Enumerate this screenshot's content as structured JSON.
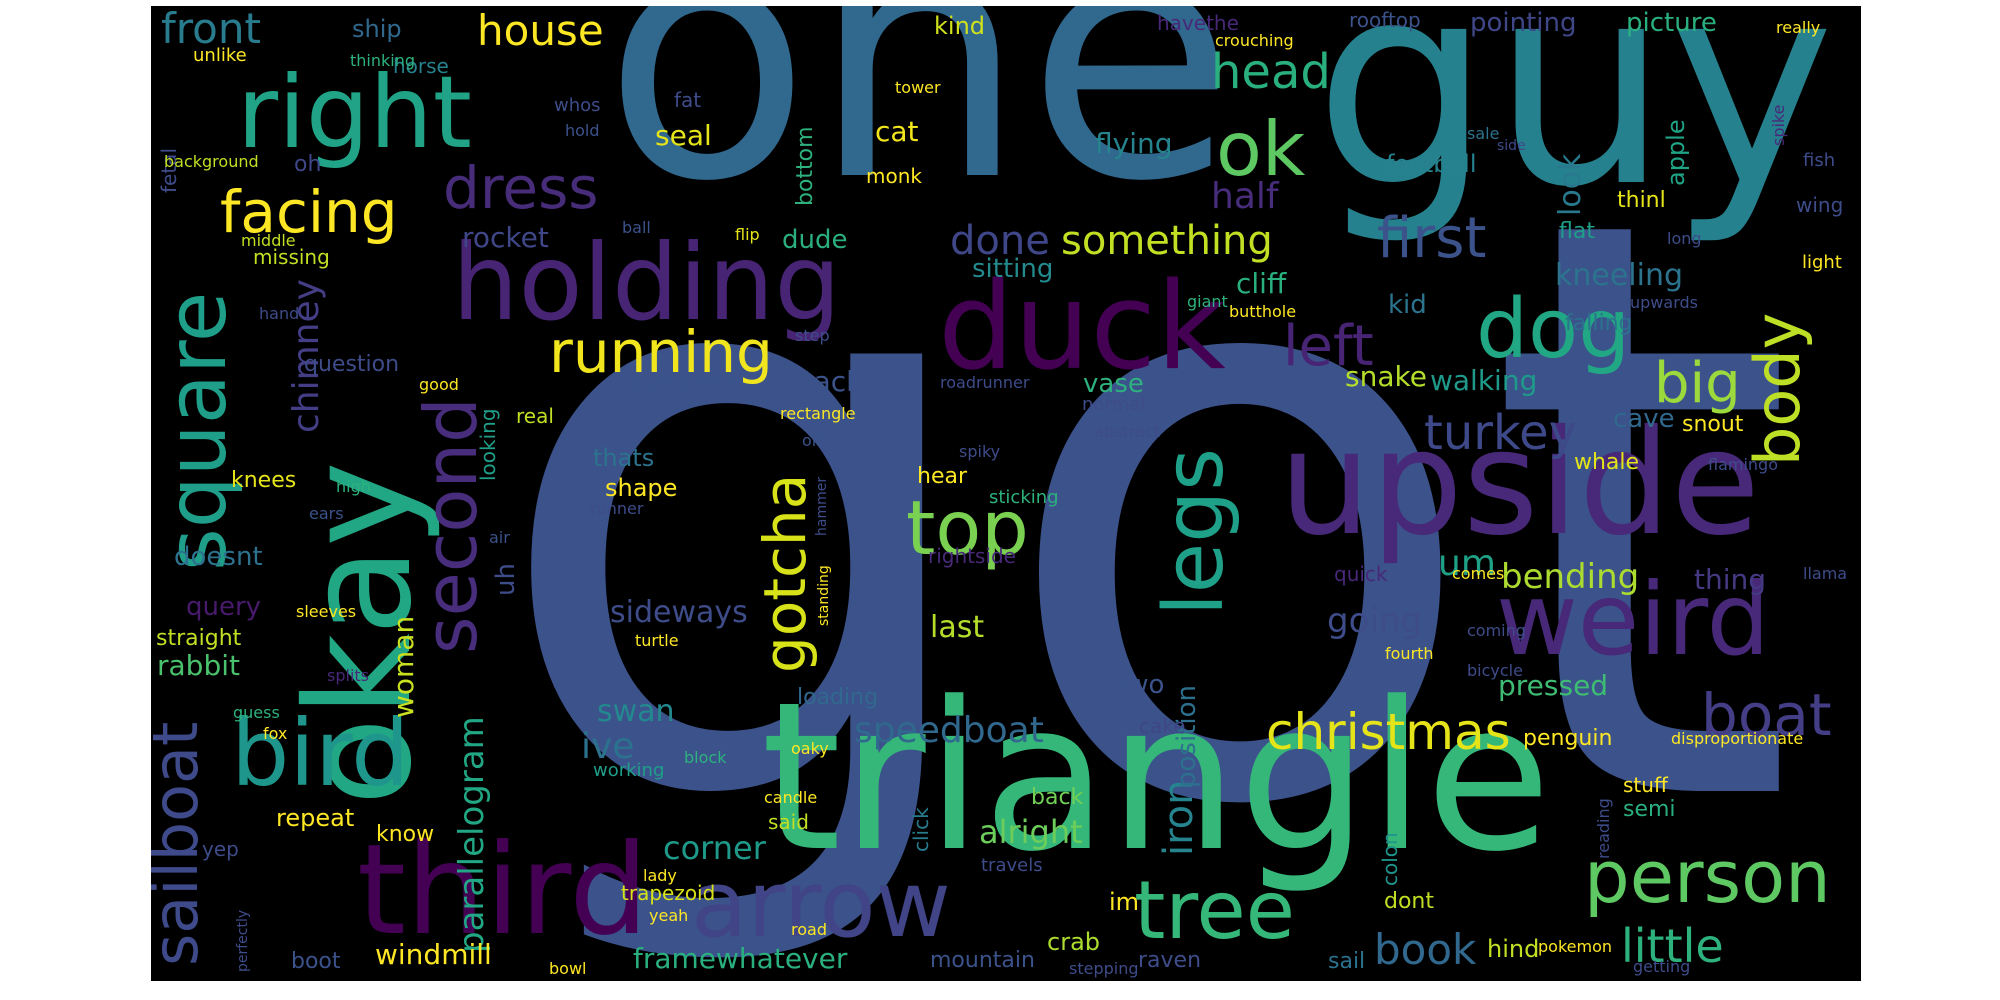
{
  "colors": {
    "background": "#000000",
    "page": "#ffffff"
  },
  "words": {
    "w01": {
      "text": "got",
      "color": "#3b528b"
    },
    "w02": {
      "text": "one",
      "color": "#30688e"
    },
    "w03": {
      "text": "guy",
      "color": "#26818e"
    },
    "w04": {
      "text": "triangle",
      "color": "#35b779"
    },
    "w05": {
      "text": "okay",
      "color": "#22a785"
    },
    "w06": {
      "text": "upside",
      "color": "#482878"
    },
    "w07": {
      "text": "duck",
      "color": "#440154"
    },
    "w08": {
      "text": "third",
      "color": "#440154"
    },
    "w09": {
      "text": "holding",
      "color": "#482475"
    },
    "w10": {
      "text": "weird",
      "color": "#482878"
    },
    "w11": {
      "text": "right",
      "color": "#20a386"
    },
    "w12": {
      "text": "bird",
      "color": "#1f968b"
    },
    "w13": {
      "text": "arrow",
      "color": "#414487"
    },
    "w14": {
      "text": "person",
      "color": "#5ec962"
    },
    "w15": {
      "text": "tree",
      "color": "#35b779"
    },
    "w16": {
      "text": "legs",
      "color": "#1fa088"
    },
    "w17": {
      "text": "dog",
      "color": "#22a785"
    },
    "w18": {
      "text": "square",
      "color": "#1f9e89"
    },
    "w19": {
      "text": "second",
      "color": "#472d7b"
    },
    "w20": {
      "text": "top",
      "color": "#7ad151"
    },
    "w21": {
      "text": "ok",
      "color": "#5ec962"
    },
    "w22": {
      "text": "sailboat",
      "color": "#3e4a89"
    },
    "w23": {
      "text": "body",
      "color": "#bddf26"
    },
    "w24": {
      "text": "facing",
      "color": "#fde725"
    },
    "w25": {
      "text": "dress",
      "color": "#472c7a"
    },
    "w26": {
      "text": "running",
      "color": "#f1e51d"
    },
    "w27": {
      "text": "boat",
      "color": "#433e85"
    },
    "w28": {
      "text": "first",
      "color": "#3b528b"
    },
    "w29": {
      "text": "left",
      "color": "#482475"
    },
    "w30": {
      "text": "big",
      "color": "#9bd93c"
    },
    "w31": {
      "text": "christmas",
      "color": "#e5e419"
    },
    "w32": {
      "text": "gotcha",
      "color": "#d8e219"
    },
    "w33": {
      "text": "turkey",
      "color": "#3e4989"
    },
    "w34": {
      "text": "head",
      "color": "#2ab07f"
    },
    "w35": {
      "text": "book",
      "color": "#31688e"
    },
    "w36": {
      "text": "little",
      "color": "#2db27d"
    },
    "w37": {
      "text": "house",
      "color": "#fde725"
    },
    "w38": {
      "text": "front",
      "color": "#287c8e"
    },
    "w39": {
      "text": "something",
      "color": "#c2df23"
    },
    "w40": {
      "text": "done",
      "color": "#3f4788"
    },
    "w41": {
      "text": "chimney",
      "color": "#433e85"
    },
    "w42": {
      "text": "half",
      "color": "#472d7b"
    },
    "w43": {
      "text": "iron",
      "color": "#25848e"
    },
    "w44": {
      "text": "parallelogram",
      "color": "#22a785"
    },
    "w45": {
      "text": "um",
      "color": "#1fa187"
    },
    "w46": {
      "text": "speedboat",
      "color": "#31688e"
    },
    "w47": {
      "text": "bending",
      "color": "#addc30"
    },
    "w48": {
      "text": "going",
      "color": "#3e4c8a"
    },
    "w49": {
      "text": "ive",
      "color": "#2c728e"
    },
    "w50": {
      "text": "look",
      "color": "#29798e"
    },
    "w51": {
      "text": "kneeling",
      "color": "#2c738e"
    },
    "w52": {
      "text": "position",
      "color": "#2d708e"
    },
    "w53": {
      "text": "woman",
      "color": "#c8e020"
    },
    "w54": {
      "text": "windmill",
      "color": "#fde725"
    },
    "w55": {
      "text": "framewhatever",
      "color": "#2ab07f"
    },
    "w56": {
      "text": "corner",
      "color": "#1f9a8a"
    },
    "w57": {
      "text": "alright",
      "color": "#6ccd5a"
    },
    "w58": {
      "text": "swan",
      "color": "#23898e"
    },
    "w59": {
      "text": "sideways",
      "color": "#3e4c8a"
    },
    "w60": {
      "text": "last",
      "color": "#b5de2b"
    },
    "w61": {
      "text": "yacht",
      "color": "#3b528b"
    },
    "w62": {
      "text": "rocket",
      "color": "#3f4788"
    },
    "w63": {
      "text": "cliff",
      "color": "#2ab07f"
    },
    "w64": {
      "text": "snake",
      "color": "#b5de2b"
    },
    "w65": {
      "text": "walking",
      "color": "#1f9a8a"
    },
    "w66": {
      "text": "cave",
      "color": "#31688e"
    },
    "w67": {
      "text": "pressed",
      "color": "#3fbc73"
    },
    "w68": {
      "text": "thing",
      "color": "#443a83"
    },
    "w69": {
      "text": "rabbit",
      "color": "#4ac16d"
    },
    "w70": {
      "text": "query",
      "color": "#481a6c"
    },
    "w71": {
      "text": "doesnt",
      "color": "#2c728e"
    },
    "w72": {
      "text": "uh",
      "color": "#3e4c8a"
    },
    "w73": {
      "text": "seal",
      "color": "#e5e419"
    },
    "w74": {
      "text": "cat",
      "color": "#f1e51d"
    },
    "w75": {
      "text": "flying",
      "color": "#25848e"
    },
    "w76": {
      "text": "dude",
      "color": "#2ab07f"
    },
    "w77": {
      "text": "sitting",
      "color": "#238a8d"
    },
    "w78": {
      "text": "kid",
      "color": "#2c738e"
    },
    "w79": {
      "text": "vase",
      "color": "#2db27d"
    },
    "w80": {
      "text": "bottom",
      "color": "#2db27d"
    },
    "w81": {
      "text": "ship",
      "color": "#31688e"
    },
    "w82": {
      "text": "kind",
      "color": "#d0e11c"
    },
    "w83": {
      "text": "pointing",
      "color": "#3f4788"
    },
    "w84": {
      "text": "picture",
      "color": "#2ab07f"
    },
    "w85": {
      "text": "football",
      "color": "#26828e"
    },
    "w86": {
      "text": "apple",
      "color": "#20a486"
    },
    "w87": {
      "text": "thinl",
      "color": "#e5e419"
    },
    "w88": {
      "text": "flat",
      "color": "#1f9e89"
    },
    "w89": {
      "text": "falling",
      "color": "#2c728e"
    },
    "w90": {
      "text": "whale",
      "color": "#e5e419"
    },
    "w91": {
      "text": "snout",
      "color": "#fde725"
    },
    "w92": {
      "text": "penguin",
      "color": "#fde725"
    },
    "w93": {
      "text": "semi",
      "color": "#29af7f"
    },
    "w94": {
      "text": "stuff",
      "color": "#fde725"
    },
    "w95": {
      "text": "hind",
      "color": "#c2df23"
    },
    "w96": {
      "text": "dont",
      "color": "#c2df23"
    },
    "w97": {
      "text": "colon",
      "color": "#1f958b"
    },
    "w98": {
      "text": "back",
      "color": "#73d056"
    },
    "w99": {
      "text": "crab",
      "color": "#addc30"
    },
    "w100": {
      "text": "im",
      "color": "#fde725"
    },
    "w101": {
      "text": "raven",
      "color": "#3e4c8a"
    },
    "w102": {
      "text": "sail",
      "color": "#2c728e"
    },
    "w103": {
      "text": "mountain",
      "color": "#3b528b"
    },
    "w104": {
      "text": "boot",
      "color": "#3b528b"
    },
    "w105": {
      "text": "trapezoid",
      "color": "#d8e219"
    },
    "w106": {
      "text": "repeat",
      "color": "#fde725"
    },
    "w107": {
      "text": "know",
      "color": "#fde725"
    },
    "w108": {
      "text": "yep",
      "color": "#3e4c8a"
    },
    "w109": {
      "text": "said",
      "color": "#c2df23"
    },
    "w110": {
      "text": "click",
      "color": "#287c8e"
    },
    "w111": {
      "text": "shape",
      "color": "#fde725"
    },
    "w112": {
      "text": "thats",
      "color": "#2c738e"
    },
    "w113": {
      "text": "knees",
      "color": "#e5e419"
    },
    "w114": {
      "text": "straight",
      "color": "#c2df23"
    },
    "w115": {
      "text": "loading",
      "color": "#31688e"
    },
    "w116": {
      "text": "working",
      "color": "#1f9e89"
    },
    "w117": {
      "text": "hear",
      "color": "#fde725"
    },
    "w118": {
      "text": "two",
      "color": "#3b528b"
    },
    "w119": {
      "text": "cake",
      "color": "#3f4788"
    },
    "w120": {
      "text": "question",
      "color": "#3e4c8a"
    },
    "w121": {
      "text": "real",
      "color": "#c2df23"
    },
    "w122": {
      "text": "steamboat",
      "color": "#3b528b"
    },
    "w123": {
      "text": "looking",
      "color": "#1f9e89"
    },
    "w124": {
      "text": "missing",
      "color": "#c2df23"
    },
    "w125": {
      "text": "oh",
      "color": "#3f4788"
    },
    "w126": {
      "text": "fetal",
      "color": "#3e4c8a"
    },
    "w127": {
      "text": "unlike",
      "color": "#fde725"
    },
    "w128": {
      "text": "horse",
      "color": "#26828e"
    },
    "w129": {
      "text": "thinking",
      "color": "#2db27d"
    },
    "w130": {
      "text": "background",
      "color": "#c2df23"
    },
    "w131": {
      "text": "middle",
      "color": "#c2df23"
    },
    "w132": {
      "text": "ball",
      "color": "#3b528b"
    },
    "w133": {
      "text": "flip",
      "color": "#e5e419"
    },
    "w134": {
      "text": "monk",
      "color": "#fde725"
    },
    "w135": {
      "text": "tower",
      "color": "#fde725"
    },
    "w136": {
      "text": "fat",
      "color": "#3e4c8a"
    },
    "w137": {
      "text": "whos",
      "color": "#3e4c8a"
    },
    "w138": {
      "text": "hold",
      "color": "#3b528b"
    },
    "w139": {
      "text": "havethe",
      "color": "#482878"
    },
    "w140": {
      "text": "crouching",
      "color": "#fde725"
    },
    "w141": {
      "text": "rooftop",
      "color": "#3b528b"
    },
    "w142": {
      "text": "really",
      "color": "#fde725"
    },
    "w143": {
      "text": "sale",
      "color": "#2c728e"
    },
    "w144": {
      "text": "spike",
      "color": "#482878"
    },
    "w145": {
      "text": "fish",
      "color": "#3e4c8a"
    },
    "w146": {
      "text": "wing",
      "color": "#3e4c8a"
    },
    "w147": {
      "text": "long",
      "color": "#3e4c8a"
    },
    "w148": {
      "text": "light",
      "color": "#fde725"
    },
    "w149": {
      "text": "upwards",
      "color": "#3e4c8a"
    },
    "w150": {
      "text": "giant",
      "color": "#2db27d"
    },
    "w151": {
      "text": "butthole",
      "color": "#fde725"
    },
    "w152": {
      "text": "step",
      "color": "#3e4c8a"
    },
    "w153": {
      "text": "good",
      "color": "#fde725"
    },
    "w154": {
      "text": "roadrunner",
      "color": "#3e4c8a"
    },
    "w155": {
      "text": "normal",
      "color": "#3e4c8a"
    },
    "w156": {
      "text": "abstract",
      "color": "#3e4c8a"
    },
    "w157": {
      "text": "rectangle",
      "color": "#fde725"
    },
    "w158": {
      "text": "oik",
      "color": "#3b528b"
    },
    "w159": {
      "text": "spiky",
      "color": "#3e4c8a"
    },
    "w160": {
      "text": "sticking",
      "color": "#2db27d"
    },
    "w161": {
      "text": "hammer",
      "color": "#3e4c8a"
    },
    "w162": {
      "text": "runner",
      "color": "#3e4c8a"
    },
    "w163": {
      "text": "air",
      "color": "#3b528b"
    },
    "w164": {
      "text": "standing",
      "color": "#fde725"
    },
    "w165": {
      "text": "rightside",
      "color": "#482878"
    },
    "w166": {
      "text": "turtle",
      "color": "#fde725"
    },
    "w167": {
      "text": "splits",
      "color": "#482878"
    },
    "w168": {
      "text": "sleeves",
      "color": "#fde725"
    },
    "w169": {
      "text": "ears",
      "color": "#3b528b"
    },
    "w170": {
      "text": "high",
      "color": "#2db27d"
    },
    "w171": {
      "text": "guess",
      "color": "#2db27d"
    },
    "w172": {
      "text": "fox",
      "color": "#fde725"
    },
    "w173": {
      "text": "block",
      "color": "#2db27d"
    },
    "w174": {
      "text": "oaky",
      "color": "#fde725"
    },
    "w175": {
      "text": "candle",
      "color": "#fde725"
    },
    "w176": {
      "text": "lady",
      "color": "#fde725"
    },
    "w177": {
      "text": "yeah",
      "color": "#fde725"
    },
    "w178": {
      "text": "road",
      "color": "#fde725"
    },
    "w179": {
      "text": "bowl",
      "color": "#fde725"
    },
    "w180": {
      "text": "perfectly",
      "color": "#3e4c8a"
    },
    "w181": {
      "text": "travels",
      "color": "#3e4c8a"
    },
    "w182": {
      "text": "stepping",
      "color": "#3e4c8a"
    },
    "w183": {
      "text": "pokemon",
      "color": "#fde725"
    },
    "w184": {
      "text": "getting",
      "color": "#3e4c8a"
    },
    "w185": {
      "text": "reading",
      "color": "#3e4c8a"
    },
    "w186": {
      "text": "quick",
      "color": "#482878"
    },
    "w187": {
      "text": "comes",
      "color": "#fde725"
    },
    "w188": {
      "text": "coming",
      "color": "#3e4c8a"
    },
    "w189": {
      "text": "fourth",
      "color": "#fde725"
    },
    "w190": {
      "text": "bicycle",
      "color": "#3e4c8a"
    },
    "w191": {
      "text": "llama",
      "color": "#3e4c8a"
    },
    "w192": {
      "text": "flamingo",
      "color": "#3e4c8a"
    },
    "w193": {
      "text": "disproportionate",
      "color": "#fde725"
    },
    "w194": {
      "text": "side",
      "color": "#3e4c8a"
    },
    "w195": {
      "text": "hand",
      "color": "#3e4c8a"
    }
  }
}
